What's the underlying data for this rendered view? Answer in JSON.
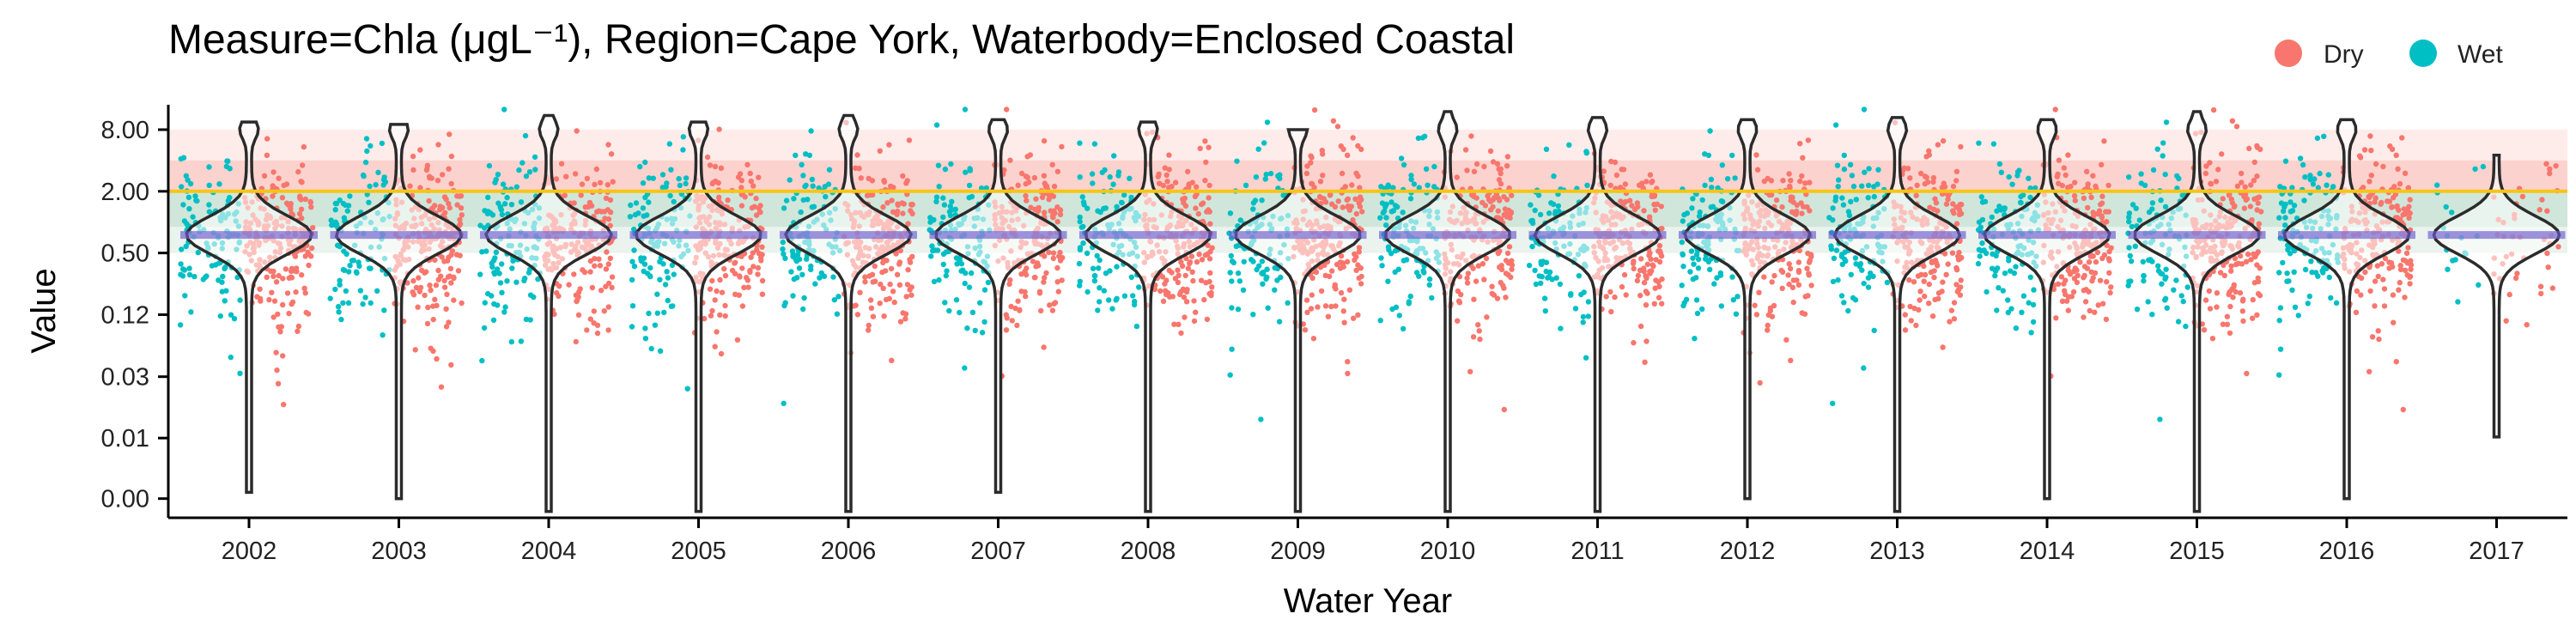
{
  "chart_data": {
    "type": "violin-jitter",
    "title": "Measure=Chla (μgL⁻¹), Region=Cape York, Waterbody=Enclosed Coastal",
    "xlabel": "Water Year",
    "ylabel": "Value",
    "y_scale": "log",
    "categories": [
      "2002",
      "2003",
      "2004",
      "2005",
      "2006",
      "2007",
      "2008",
      "2009",
      "2010",
      "2011",
      "2012",
      "2013",
      "2014",
      "2015",
      "2016",
      "2017"
    ],
    "y_ticks": [
      {
        "label": "8.00",
        "value": 8
      },
      {
        "label": "2.00",
        "value": 2
      },
      {
        "label": "0.50",
        "value": 0.5
      },
      {
        "label": "0.12",
        "value": 0.125
      },
      {
        "label": "0.03",
        "value": 0.031
      },
      {
        "label": "0.01",
        "value": 0.0078
      },
      {
        "label": "0.00",
        "value": 0.002
      }
    ],
    "ylim": [
      0.0013,
      14
    ],
    "guideline": {
      "value": 2.0,
      "color": "#F5C518"
    },
    "bands": [
      {
        "from": 2.0,
        "to": 8.0,
        "color": "#F8766D",
        "opacity": 0.14
      },
      {
        "from": 2.0,
        "to": 4.0,
        "color": "#F8766D",
        "opacity": 0.22
      },
      {
        "from": 0.9,
        "to": 2.0,
        "color": "#2E8B57",
        "opacity": 0.22
      },
      {
        "from": 0.5,
        "to": 0.9,
        "color": "#2E8B57",
        "opacity": 0.1
      }
    ],
    "series": [
      {
        "name": "Dry",
        "color": "#F8766D"
      },
      {
        "name": "Wet",
        "color": "#00BFC4"
      }
    ],
    "legend_position": "top-right",
    "violin": {
      "median": 0.75,
      "per_year": [
        {
          "year": "2002",
          "min": 0.0023,
          "max": 9.5
        },
        {
          "year": "2003",
          "min": 0.002,
          "max": 9.0
        },
        {
          "year": "2004",
          "min": 0.0015,
          "max": 11.0
        },
        {
          "year": "2005",
          "min": 0.0015,
          "max": 9.5
        },
        {
          "year": "2006",
          "min": 0.0015,
          "max": 11.0
        },
        {
          "year": "2007",
          "min": 0.0023,
          "max": 10.0
        },
        {
          "year": "2008",
          "min": 0.0015,
          "max": 9.5
        },
        {
          "year": "2009",
          "min": 0.0015,
          "max": 8.0
        },
        {
          "year": "2010",
          "min": 0.0015,
          "max": 12.0
        },
        {
          "year": "2011",
          "min": 0.0015,
          "max": 10.5
        },
        {
          "year": "2012",
          "min": 0.002,
          "max": 10.0
        },
        {
          "year": "2013",
          "min": 0.0015,
          "max": 10.5
        },
        {
          "year": "2014",
          "min": 0.002,
          "max": 10.0
        },
        {
          "year": "2015",
          "min": 0.0015,
          "max": 12.0
        },
        {
          "year": "2016",
          "min": 0.002,
          "max": 10.0
        },
        {
          "year": "2017",
          "min": 0.008,
          "max": 4.5
        }
      ]
    }
  }
}
